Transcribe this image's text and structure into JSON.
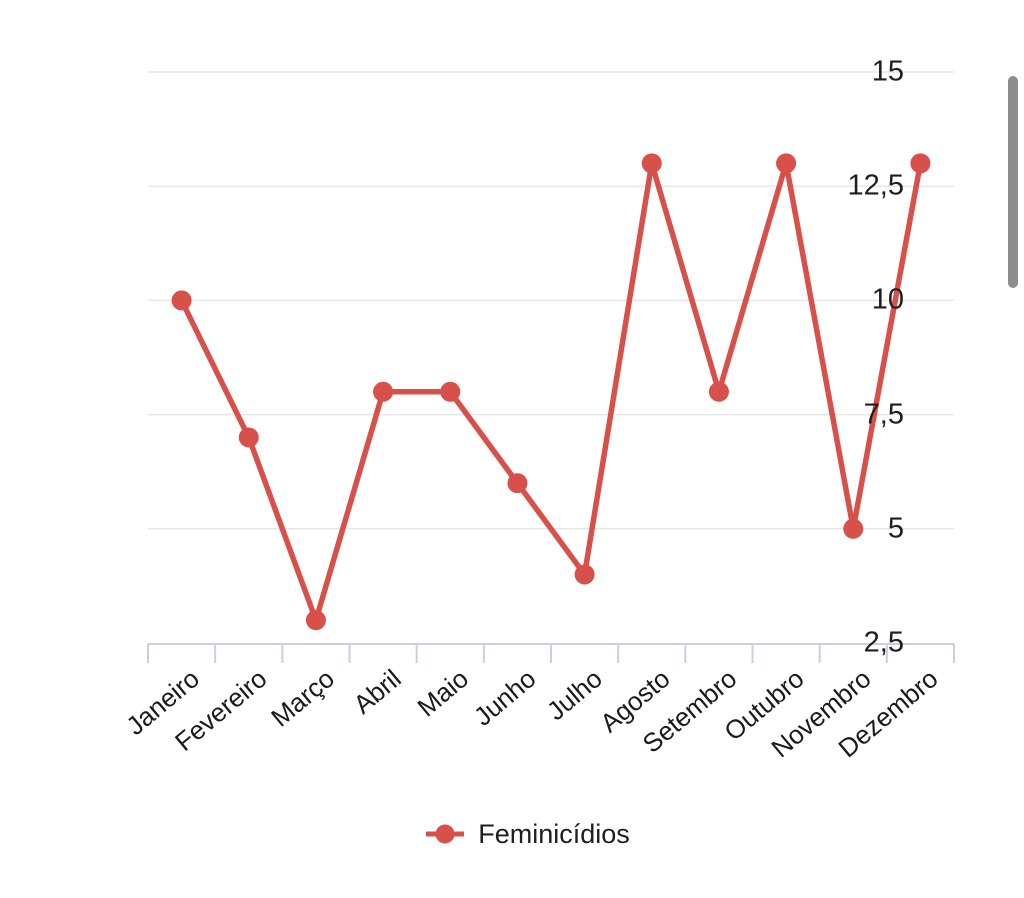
{
  "chart_data": {
    "type": "line",
    "title": "",
    "categories": [
      "Janeiro",
      "Fevereiro",
      "Março",
      "Abril",
      "Maio",
      "Junho",
      "Julho",
      "Agosto",
      "Setembro",
      "Outubro",
      "Novembro",
      "Dezembro"
    ],
    "series": [
      {
        "name": "Feminicídios",
        "values": [
          10,
          7,
          3,
          8,
          8,
          6,
          4,
          13,
          8,
          13,
          5,
          13
        ],
        "color": "#d8504a"
      }
    ],
    "xlabel": "",
    "ylabel": "",
    "ylim": [
      2.5,
      15
    ],
    "ytick_values": [
      2.5,
      5,
      7.5,
      10,
      12.5,
      15
    ],
    "ytick_labels": [
      "2,5",
      "5",
      "7,5",
      "10",
      "12,5",
      "15"
    ],
    "grid": true,
    "legend_position": "bottom"
  },
  "legend": {
    "label": "Feminicídios"
  },
  "colors": {
    "series": "#d8504a",
    "gridline": "#e7e7e7",
    "axis": "#c9cfdf",
    "text": "#1e1e1e",
    "scrollbar": "#8d8d8d",
    "background": "#ffffff"
  }
}
